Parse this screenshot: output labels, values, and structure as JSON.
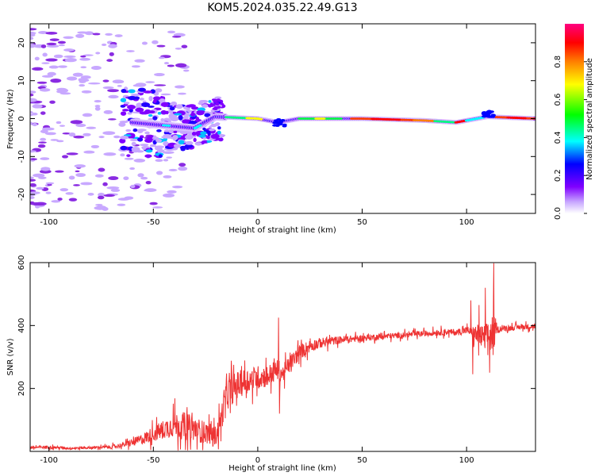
{
  "title": "KOM5.2024.035.22.49.G13",
  "chart_data": [
    {
      "type": "heatmap",
      "xlabel": "Height of straight line (km)",
      "ylabel": "Frequency (Hz)",
      "xlim": [
        -109,
        133
      ],
      "ylim": [
        -25,
        25
      ],
      "xticks": [
        -100,
        -50,
        0,
        50,
        100
      ],
      "yticks": [
        -20,
        -10,
        0,
        10,
        20
      ],
      "grid": false,
      "colorbar": {
        "label": "Normalized spectral amplitude",
        "range": [
          0,
          1
        ],
        "ticks": [
          0.0,
          0.2,
          0.4,
          0.6,
          0.8
        ],
        "colormap": [
          "#ffffff",
          "#c8a8ff",
          "#8000ff",
          "#0000ff",
          "#00ffff",
          "#00ff00",
          "#ffff00",
          "#ff8000",
          "#ff0000",
          "#ff0080"
        ]
      },
      "ridge": [
        {
          "x": -110,
          "f": 0.0
        },
        {
          "x": -60,
          "f": -1.0
        },
        {
          "x": -40,
          "f": -2.0
        },
        {
          "x": -30,
          "f": -2.5
        },
        {
          "x": -20,
          "f": 0.5
        },
        {
          "x": 0,
          "f": 0.0
        },
        {
          "x": 10,
          "f": -1.0
        },
        {
          "x": 20,
          "f": 0.0
        },
        {
          "x": 50,
          "f": 0.0
        },
        {
          "x": 80,
          "f": -0.5
        },
        {
          "x": 95,
          "f": -1.0
        },
        {
          "x": 110,
          "f": 0.5
        },
        {
          "x": 133,
          "f": 0.0
        }
      ]
    },
    {
      "type": "line",
      "xlabel": "Height of straight line (km)",
      "ylabel": "SNR (v/v)",
      "xlim": [
        -109,
        133
      ],
      "ylim": [
        0,
        600
      ],
      "xticks": [
        -100,
        -50,
        0,
        50,
        100
      ],
      "yticks": [
        200,
        400,
        600
      ],
      "grid": false,
      "series": [
        {
          "color": "#ee3333",
          "x": [
            -109,
            -100,
            -90,
            -80,
            -70,
            -65,
            -60,
            -55,
            -50,
            -45,
            -40,
            -35,
            -30,
            -25,
            -20,
            -18,
            -15,
            -10,
            -5,
            0,
            5,
            8,
            10,
            12,
            15,
            20,
            25,
            30,
            35,
            40,
            50,
            60,
            70,
            80,
            90,
            95,
            100,
            102,
            105,
            108,
            110,
            113,
            114,
            116,
            120,
            125,
            133
          ],
          "y": [
            12,
            14,
            10,
            12,
            14,
            20,
            28,
            40,
            55,
            70,
            85,
            80,
            70,
            60,
            50,
            90,
            180,
            210,
            225,
            235,
            240,
            255,
            260,
            245,
            275,
            315,
            335,
            345,
            350,
            355,
            360,
            365,
            370,
            375,
            380,
            378,
            385,
            380,
            370,
            360,
            365,
            375,
            385,
            390,
            392,
            395,
            398
          ],
          "noise": [
            5,
            5,
            4,
            4,
            6,
            8,
            12,
            18,
            25,
            30,
            40,
            45,
            40,
            35,
            30,
            40,
            50,
            45,
            40,
            38,
            35,
            33,
            32,
            30,
            28,
            24,
            20,
            16,
            14,
            12,
            10,
            10,
            9,
            9,
            10,
            10,
            12,
            14,
            35,
            40,
            45,
            70,
            12,
            10,
            9,
            9,
            9
          ]
        }
      ],
      "spikes": [
        {
          "x": 10,
          "y": 425
        },
        {
          "x": 10.4,
          "y": 120
        },
        {
          "x": 102,
          "y": 480
        },
        {
          "x": 103,
          "y": 245
        },
        {
          "x": 106,
          "y": 465
        },
        {
          "x": 109,
          "y": 520
        },
        {
          "x": 111,
          "y": 250
        },
        {
          "x": 113,
          "y": 598
        }
      ]
    }
  ]
}
